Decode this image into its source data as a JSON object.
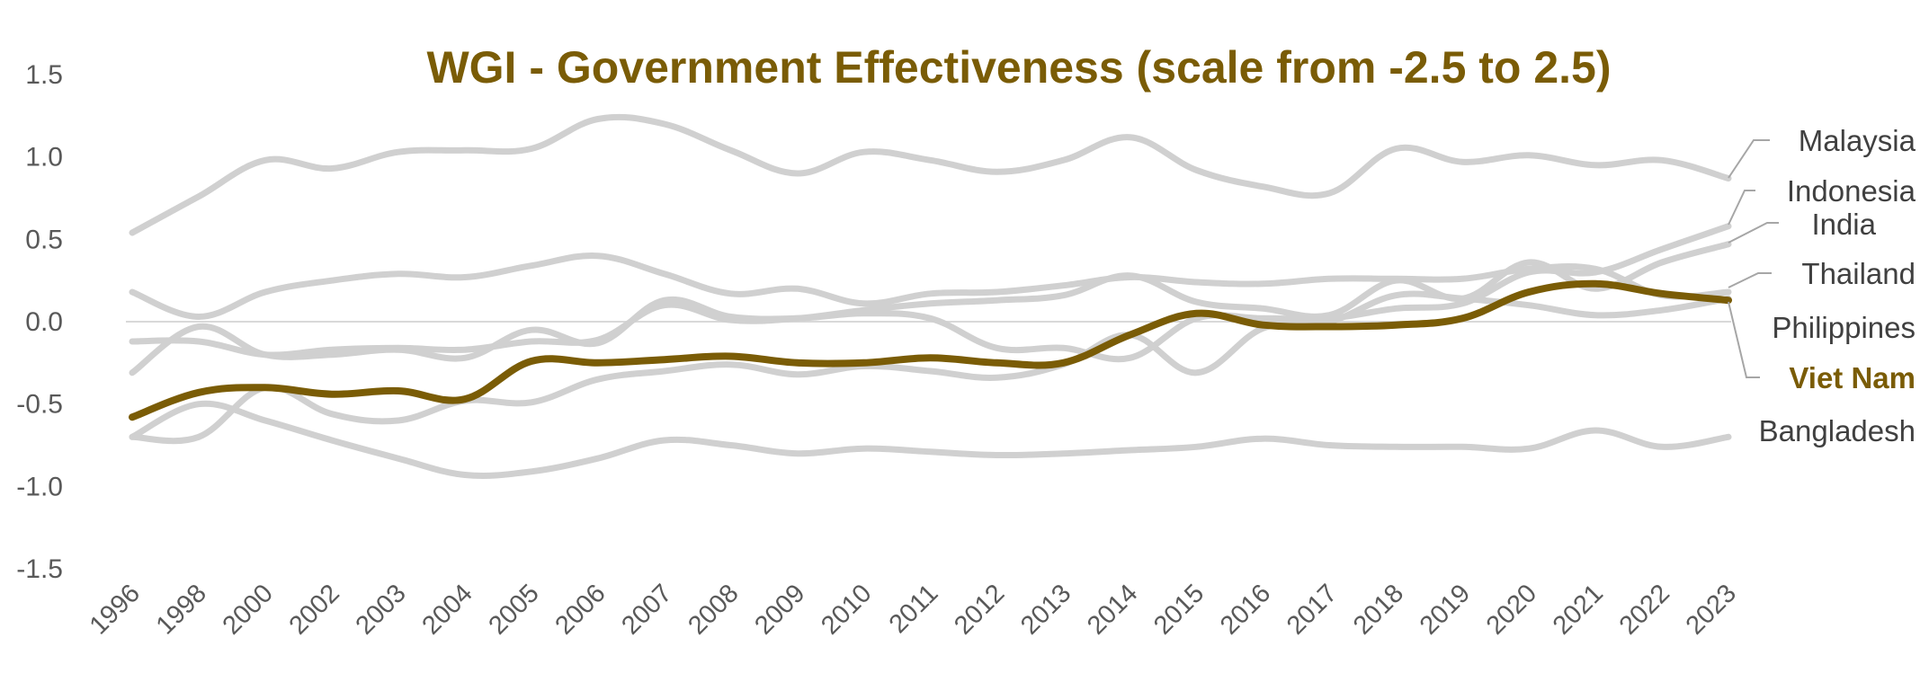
{
  "chart_data": {
    "type": "line",
    "title": "WGI - Government Effectiveness (scale from -2.5 to 2.5)",
    "xlabel": "",
    "ylabel": "",
    "categories": [
      "1996",
      "1998",
      "2000",
      "2002",
      "2003",
      "2004",
      "2005",
      "2006",
      "2007",
      "2008",
      "2009",
      "2010",
      "2011",
      "2012",
      "2013",
      "2014",
      "2015",
      "2016",
      "2017",
      "2018",
      "2019",
      "2020",
      "2021",
      "2022",
      "2023"
    ],
    "yticks": [
      "1.5",
      "1.0",
      "0.5",
      "0.0",
      "-0.5",
      "-1.0",
      "-1.5"
    ],
    "ylim": [
      -1.5,
      1.5
    ],
    "grid": "zero-line only",
    "legend": "labels at right end of lines",
    "series": [
      {
        "name": "Malaysia",
        "color": "#d0d0d0",
        "values": [
          0.54,
          0.76,
          0.98,
          0.93,
          1.03,
          1.04,
          1.05,
          1.23,
          1.2,
          1.04,
          0.9,
          1.03,
          0.98,
          0.91,
          0.98,
          1.12,
          0.92,
          0.82,
          0.78,
          1.05,
          0.97,
          1.01,
          0.95,
          0.98,
          0.87
        ]
      },
      {
        "name": "Indonesia",
        "color": "#d0d0d0",
        "values": [
          -0.31,
          -0.03,
          -0.2,
          -0.2,
          -0.17,
          -0.22,
          -0.05,
          -0.13,
          0.13,
          0.03,
          0.02,
          0.05,
          0.02,
          -0.16,
          -0.16,
          -0.22,
          0.02,
          0.02,
          0.02,
          0.08,
          0.11,
          0.3,
          0.3,
          0.44,
          0.58
        ]
      },
      {
        "name": "India",
        "color": "#d0d0d0",
        "values": [
          -0.12,
          -0.12,
          -0.2,
          -0.17,
          -0.16,
          -0.17,
          -0.12,
          -0.11,
          0.1,
          0.01,
          0.02,
          0.07,
          0.11,
          0.13,
          0.16,
          0.28,
          0.12,
          0.08,
          0.04,
          0.25,
          0.14,
          0.36,
          0.2,
          0.36,
          0.47
        ]
      },
      {
        "name": "Thailand",
        "color": "#d0d0d0",
        "values": [
          0.18,
          0.03,
          0.18,
          0.25,
          0.29,
          0.27,
          0.34,
          0.4,
          0.29,
          0.17,
          0.2,
          0.11,
          0.17,
          0.18,
          0.22,
          0.27,
          0.24,
          0.23,
          0.26,
          0.26,
          0.26,
          0.32,
          0.32,
          0.16,
          0.18
        ]
      },
      {
        "name": "Philippines",
        "color": "#d0d0d0",
        "values": [
          -0.7,
          -0.7,
          -0.4,
          -0.56,
          -0.6,
          -0.48,
          -0.49,
          -0.35,
          -0.3,
          -0.26,
          -0.32,
          -0.27,
          -0.3,
          -0.34,
          -0.26,
          -0.08,
          -0.31,
          -0.04,
          0.0,
          0.16,
          0.14,
          0.1,
          0.04,
          0.07,
          0.14
        ]
      },
      {
        "name": "Viet Nam",
        "color": "#7a5c06",
        "highlight": true,
        "values": [
          -0.58,
          -0.43,
          -0.4,
          -0.44,
          -0.42,
          -0.47,
          -0.24,
          -0.25,
          -0.23,
          -0.21,
          -0.25,
          -0.25,
          -0.22,
          -0.25,
          -0.25,
          -0.08,
          0.05,
          -0.02,
          -0.03,
          -0.02,
          0.02,
          0.18,
          0.23,
          0.17,
          0.13
        ]
      },
      {
        "name": "Bangladesh",
        "color": "#d0d0d0",
        "values": [
          -0.7,
          -0.5,
          -0.6,
          -0.72,
          -0.83,
          -0.93,
          -0.91,
          -0.83,
          -0.72,
          -0.75,
          -0.8,
          -0.77,
          -0.79,
          -0.81,
          -0.8,
          -0.78,
          -0.76,
          -0.71,
          -0.75,
          -0.76,
          -0.76,
          -0.77,
          -0.66,
          -0.76,
          -0.7
        ]
      }
    ]
  }
}
